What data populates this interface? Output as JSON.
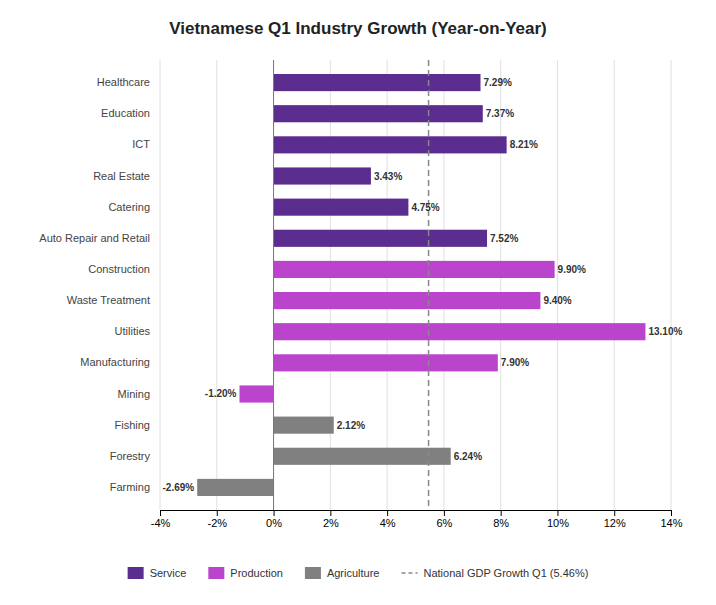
{
  "chart_data": {
    "type": "bar",
    "orientation": "horizontal",
    "stacked": true,
    "title": "Vietnamese Q1 Industry Growth (Year-on-Year)",
    "categories": [
      "Farming",
      "Forestry",
      "Fishing",
      "Mining",
      "Manufacturing",
      "Utilities",
      "Waste Treatment",
      "Construction",
      "Auto Repair and Retail",
      "Catering",
      "Real Estate",
      "ICT",
      "Education",
      "Healthcare"
    ],
    "series": [
      {
        "name": "Service",
        "color": "#5b2d8e",
        "values": [
          null,
          null,
          null,
          null,
          null,
          null,
          null,
          null,
          7.52,
          4.75,
          3.43,
          8.21,
          7.37,
          7.29
        ],
        "value_labels": [
          null,
          null,
          null,
          null,
          null,
          null,
          null,
          null,
          "7.52%",
          "4.75%",
          "3.43%",
          "8.21%",
          "7.37%",
          "7.29%"
        ]
      },
      {
        "name": "Production",
        "color": "#bb44cc",
        "values": [
          null,
          null,
          null,
          -1.2,
          7.9,
          13.1,
          9.4,
          9.9,
          null,
          null,
          null,
          null,
          null,
          null
        ],
        "value_labels": [
          null,
          null,
          null,
          "-1.20%",
          "7.90%",
          "13.10%",
          "9.40%",
          "9.90%",
          null,
          null,
          null,
          null,
          null,
          null
        ]
      },
      {
        "name": "Agriculture",
        "color": "#808080",
        "values": [
          -2.69,
          6.24,
          2.12,
          null,
          null,
          null,
          null,
          null,
          null,
          null,
          null,
          null,
          null,
          null
        ],
        "value_labels": [
          "-2.69%",
          "6.24%",
          "2.12%",
          null,
          null,
          null,
          null,
          null,
          null,
          null,
          null,
          null,
          null,
          null
        ]
      }
    ],
    "annotations": [
      {
        "text": "National GDP Growth Q1 (5.46%)",
        "x": 5.46,
        "color": "#888888",
        "line_style": "dashed"
      }
    ],
    "xlim": [
      -4,
      14
    ],
    "xticks": [
      {
        "value": -4,
        "label": "-4%"
      },
      {
        "value": -2,
        "label": "-2%"
      },
      {
        "value": 0,
        "label": "0%"
      },
      {
        "value": 2,
        "label": "2%"
      },
      {
        "value": 4,
        "label": "4%"
      },
      {
        "value": 6,
        "label": "6%"
      },
      {
        "value": 8,
        "label": "8%"
      },
      {
        "value": 10,
        "label": "10%"
      },
      {
        "value": 12,
        "label": "12%"
      },
      {
        "value": 14,
        "label": "14%"
      }
    ],
    "grid": true,
    "data_labels": true,
    "legend": "bottom"
  }
}
